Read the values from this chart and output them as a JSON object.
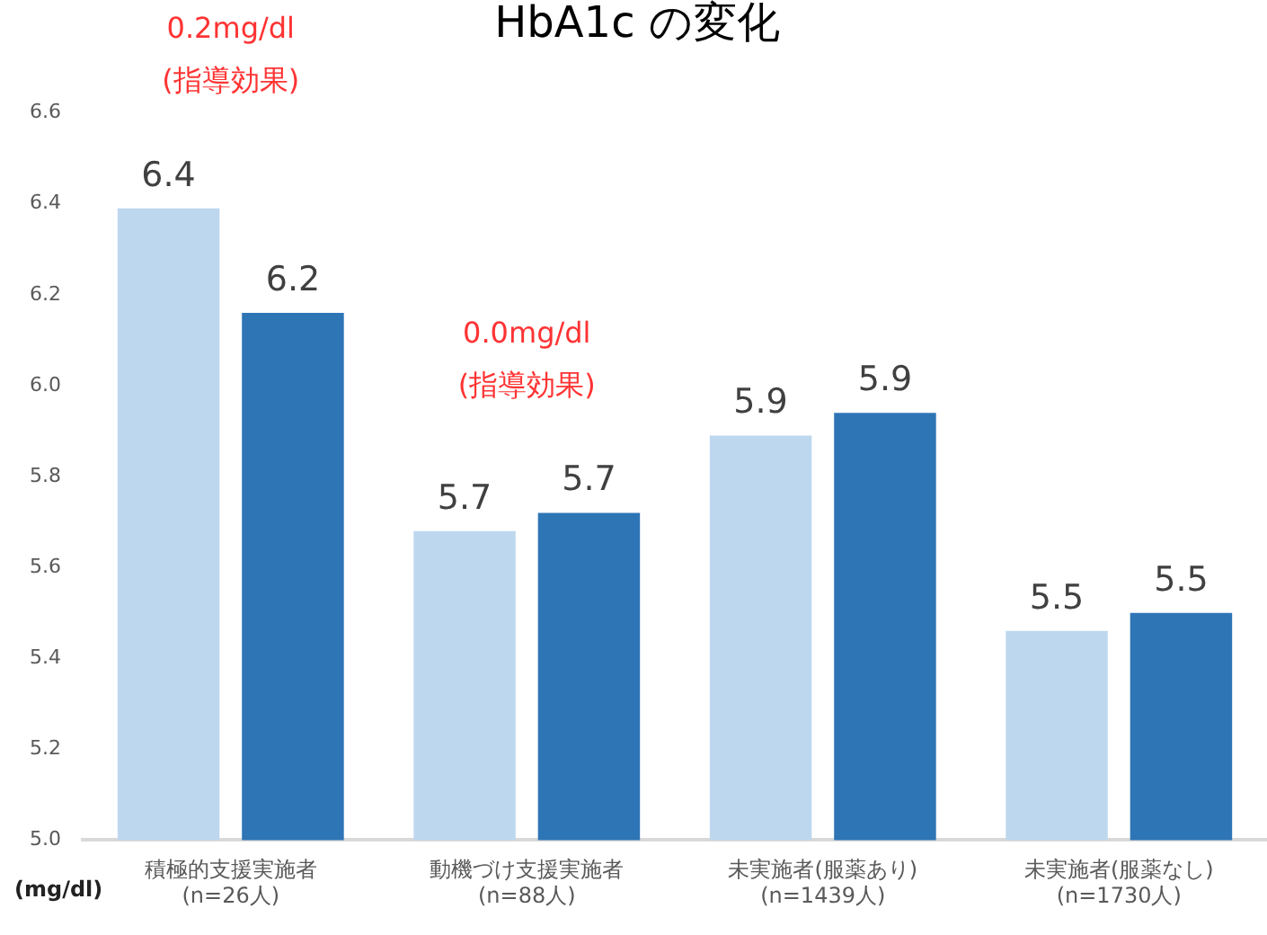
{
  "chart_data": {
    "type": "bar",
    "title": "HbA1c の変化",
    "ylabel": "(mg/dl)",
    "categories": [
      "積極的支援実施者\n(n=26人)",
      "動機づけ支援実施者\n(n=88人)",
      "未実施者(服薬あり)\n(n=1439人)",
      "未実施者(服薬なし)\n(n=1730人)"
    ],
    "series": [
      {
        "color": "#bdd7ee",
        "values": [
          6.39,
          5.68,
          5.89,
          5.46
        ],
        "value_labels": [
          "6.4",
          "5.7",
          "5.9",
          "5.5"
        ]
      },
      {
        "color": "#2e75b6",
        "values": [
          6.16,
          5.72,
          5.94,
          5.5
        ],
        "value_labels": [
          "6.2",
          "5.7",
          "5.9",
          "5.5"
        ]
      }
    ],
    "ylim": [
      5.0,
      6.6
    ],
    "yticks": [
      {
        "value": 5,
        "label": "5.0"
      },
      5.2,
      5.4,
      5.6,
      5.8,
      {
        "value": 6,
        "label": "6.0"
      },
      6.2,
      6.4,
      6.6
    ],
    "annotations": [
      "0.2mg/dl\n(指導効果)",
      "0.0mg/dl\n(指導効果)"
    ]
  }
}
